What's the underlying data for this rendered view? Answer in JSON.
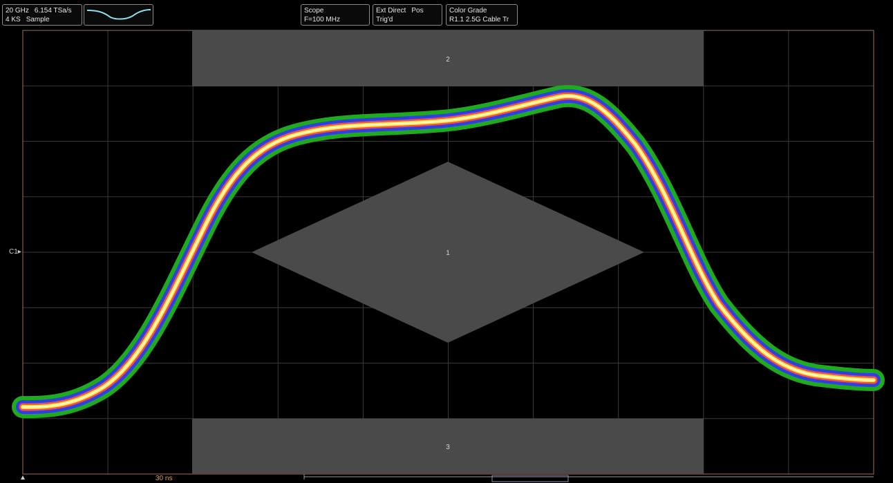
{
  "header": {
    "timebase": {
      "bandwidth": "20 GHz",
      "sample_rate": "6.154 TSa/s",
      "record_length": "4 KS",
      "mode": "Sample"
    },
    "scope": {
      "title": "Scope",
      "value": "F=100 MHz"
    },
    "trigger": {
      "source": "Ext Direct",
      "slope": "Pos",
      "state": "Trig'd"
    },
    "display": {
      "title": "Color Grade",
      "mask": "R1.1 2.5G Cable Tr"
    }
  },
  "plot": {
    "channel_label": "C1",
    "time_label": "30 ns",
    "mask_regions": [
      "2",
      "1",
      "3"
    ],
    "colors": {
      "grid": "#3a3a3a",
      "border": "#a07060",
      "mask": "#4a4a4a",
      "green": "#1faa1f",
      "blue": "#2f3fe0",
      "red": "#f05050",
      "yellow": "#ffe640",
      "white": "#fffbe0"
    }
  }
}
